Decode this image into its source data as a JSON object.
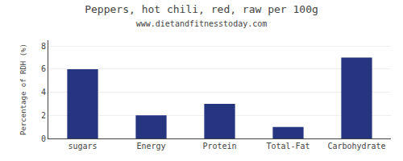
{
  "chart_data": {
    "type": "bar",
    "title": "Peppers, hot chili, red, raw per 100g",
    "subtitle": "www.dietandfitnesstoday.com",
    "ylabel": "Percentage of RDH (%)",
    "categories": [
      "sugars",
      "Energy",
      "Protein",
      "Total-Fat",
      "Carbohydrate"
    ],
    "values": [
      6.0,
      2.0,
      3.0,
      1.0,
      7.0
    ],
    "color": "#253580",
    "ylim": [
      0,
      8.5
    ],
    "yticks": [
      0,
      2,
      4,
      6,
      8
    ],
    "grid": true
  }
}
